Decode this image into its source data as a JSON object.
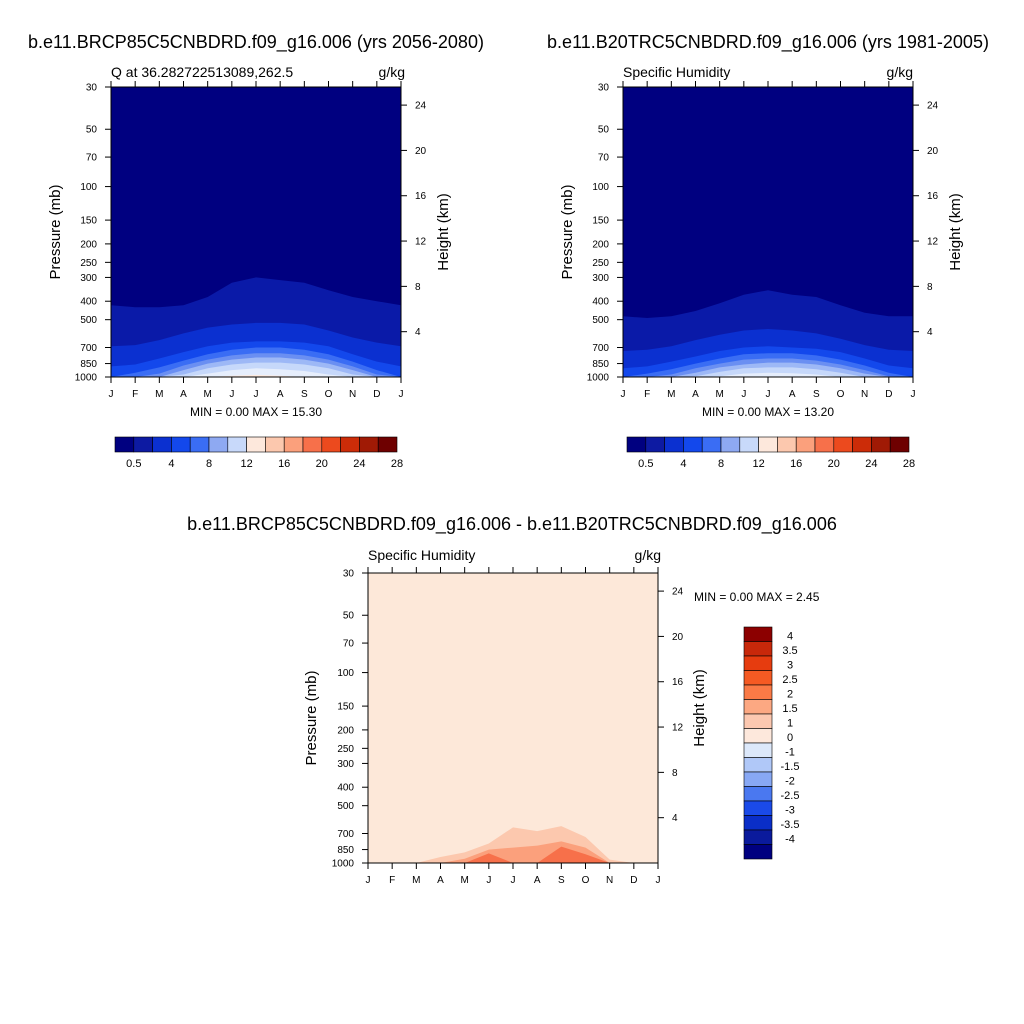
{
  "panels": [
    {
      "title": "b.e11.BRCP85C5CNBDRD.f09_g16.006 (yrs 2056-2080)",
      "left_label": "Q at 36.282722513089,262.5",
      "units": "g/kg",
      "ylabel": "Pressure (mb)",
      "y2label": "Height (km)",
      "minmax": "MIN =   0.00 MAX =  15.30"
    },
    {
      "title": "b.e11.B20TRC5CNBDRD.f09_g16.006 (yrs 1981-2005)",
      "left_label": "Specific Humidity",
      "units": "g/kg",
      "ylabel": "Pressure (mb)",
      "y2label": "Height (km)",
      "minmax": "MIN =   0.00 MAX =  13.20"
    },
    {
      "title": "b.e11.BRCP85C5CNBDRD.f09_g16.006 - b.e11.B20TRC5CNBDRD.f09_g16.006",
      "left_label": "Specific Humidity",
      "units": "g/kg",
      "ylabel": "Pressure (mb)",
      "y2label": "Height (km)",
      "minmax": "MIN =   0.00 MAX =   2.45"
    }
  ],
  "chart_data": [
    {
      "type": "heatmap",
      "x_tick_labels": [
        "J",
        "F",
        "M",
        "A",
        "M",
        "J",
        "J",
        "A",
        "S",
        "O",
        "N",
        "D",
        "J"
      ],
      "y_tick_labels": [
        "30",
        "50",
        "70",
        "100",
        "150",
        "200",
        "250",
        "300",
        "400",
        "500",
        "700",
        "850",
        "1000"
      ],
      "y_tick_values": [
        30,
        50,
        70,
        100,
        150,
        200,
        250,
        300,
        400,
        500,
        700,
        850,
        1000
      ],
      "y2_tick_labels": [
        "24",
        "20",
        "16",
        "12",
        "8",
        "4"
      ],
      "y2_tick_values": [
        24,
        20,
        16,
        12,
        8,
        4
      ],
      "ylim": [
        30,
        1000
      ],
      "y_scale": "log",
      "colorbar_labels": [
        "0.5",
        "4",
        "8",
        "12",
        "16",
        "20",
        "24",
        "28"
      ],
      "colorbar_colors": [
        "#000080",
        "#0d1aa2",
        "#0b30d0",
        "#1348ec",
        "#3a6df4",
        "#8ea9f2",
        "#c8d9fa",
        "#fde8dc",
        "#fcc8ae",
        "#fba07c",
        "#f7704a",
        "#ec4a1e",
        "#cc2c08",
        "#a01a05",
        "#6e0000"
      ],
      "bands": [
        {
          "color": "#000080",
          "top_mb": [
            30,
            30,
            30,
            30,
            30,
            30,
            30,
            30,
            30,
            30,
            30,
            30,
            30
          ]
        },
        {
          "color": "#0a1aa8",
          "top_mb": [
            420,
            430,
            430,
            420,
            380,
            320,
            300,
            310,
            320,
            350,
            380,
            400,
            420
          ]
        },
        {
          "color": "#0b30d0",
          "top_mb": [
            690,
            680,
            640,
            590,
            550,
            530,
            520,
            520,
            530,
            570,
            620,
            660,
            690
          ]
        },
        {
          "color": "#1348ec",
          "top_mb": [
            880,
            860,
            800,
            740,
            690,
            660,
            650,
            650,
            660,
            690,
            760,
            830,
            880
          ]
        },
        {
          "color": "#3a6df4",
          "top_mb": [
            1000,
            950,
            890,
            820,
            760,
            720,
            700,
            700,
            720,
            760,
            830,
            920,
            1000
          ]
        },
        {
          "color": "#6a8ff2",
          "top_mb": [
            1000,
            1000,
            960,
            870,
            810,
            770,
            750,
            750,
            770,
            810,
            880,
            970,
            1000
          ]
        },
        {
          "color": "#9db8f6",
          "top_mb": [
            1000,
            1000,
            1000,
            920,
            850,
            810,
            790,
            790,
            810,
            850,
            920,
            1000,
            1000
          ]
        },
        {
          "color": "#c6d8fa",
          "top_mb": [
            1000,
            1000,
            1000,
            970,
            900,
            860,
            840,
            840,
            860,
            900,
            970,
            1000,
            1000
          ]
        },
        {
          "color": "#e6eefc",
          "top_mb": [
            1000,
            1000,
            1000,
            1000,
            960,
            920,
            900,
            910,
            930,
            970,
            1000,
            1000,
            1000
          ]
        },
        {
          "color": "#fdeadf",
          "top_mb": [
            1000,
            1000,
            1000,
            1000,
            1000,
            985,
            975,
            985,
            1000,
            1000,
            1000,
            1000,
            1000
          ]
        }
      ]
    },
    {
      "type": "heatmap",
      "x_tick_labels": [
        "J",
        "F",
        "M",
        "A",
        "M",
        "J",
        "J",
        "A",
        "S",
        "O",
        "N",
        "D",
        "J"
      ],
      "y_tick_labels": [
        "30",
        "50",
        "70",
        "100",
        "150",
        "200",
        "250",
        "300",
        "400",
        "500",
        "700",
        "850",
        "1000"
      ],
      "y_tick_values": [
        30,
        50,
        70,
        100,
        150,
        200,
        250,
        300,
        400,
        500,
        700,
        850,
        1000
      ],
      "y2_tick_labels": [
        "24",
        "20",
        "16",
        "12",
        "8",
        "4"
      ],
      "y2_tick_values": [
        24,
        20,
        16,
        12,
        8,
        4
      ],
      "ylim": [
        30,
        1000
      ],
      "y_scale": "log",
      "colorbar_labels": [
        "0.5",
        "4",
        "8",
        "12",
        "16",
        "20",
        "24",
        "28"
      ],
      "colorbar_colors": [
        "#000080",
        "#0d1aa2",
        "#0b30d0",
        "#1348ec",
        "#3a6df4",
        "#8ea9f2",
        "#c8d9fa",
        "#fde8dc",
        "#fcc8ae",
        "#fba07c",
        "#f7704a",
        "#ec4a1e",
        "#cc2c08",
        "#a01a05",
        "#6e0000"
      ],
      "bands": [
        {
          "color": "#000080",
          "top_mb": [
            30,
            30,
            30,
            30,
            30,
            30,
            30,
            30,
            30,
            30,
            30,
            30,
            30
          ]
        },
        {
          "color": "#0a1aa8",
          "top_mb": [
            480,
            490,
            480,
            450,
            410,
            370,
            350,
            370,
            380,
            420,
            460,
            480,
            480
          ]
        },
        {
          "color": "#0b30d0",
          "top_mb": [
            730,
            720,
            690,
            640,
            600,
            570,
            560,
            570,
            590,
            630,
            680,
            720,
            730
          ]
        },
        {
          "color": "#1348ec",
          "top_mb": [
            900,
            880,
            830,
            780,
            730,
            700,
            690,
            700,
            710,
            740,
            800,
            870,
            900
          ]
        },
        {
          "color": "#3a6df4",
          "top_mb": [
            1000,
            960,
            910,
            850,
            800,
            760,
            750,
            750,
            770,
            810,
            870,
            950,
            1000
          ]
        },
        {
          "color": "#6a8ff2",
          "top_mb": [
            1000,
            1000,
            970,
            900,
            850,
            810,
            800,
            800,
            820,
            860,
            920,
            990,
            1000
          ]
        },
        {
          "color": "#9db8f6",
          "top_mb": [
            1000,
            1000,
            1000,
            950,
            890,
            860,
            840,
            840,
            860,
            900,
            960,
            1000,
            1000
          ]
        },
        {
          "color": "#c6d8fa",
          "top_mb": [
            1000,
            1000,
            1000,
            990,
            940,
            900,
            890,
            890,
            910,
            950,
            1000,
            1000,
            1000
          ]
        },
        {
          "color": "#e6eefc",
          "top_mb": [
            1000,
            1000,
            1000,
            1000,
            990,
            960,
            950,
            955,
            970,
            1000,
            1000,
            1000,
            1000
          ]
        }
      ]
    },
    {
      "type": "heatmap",
      "x_tick_labels": [
        "J",
        "F",
        "M",
        "A",
        "M",
        "J",
        "J",
        "A",
        "S",
        "O",
        "N",
        "D",
        "J"
      ],
      "y_tick_labels": [
        "30",
        "50",
        "70",
        "100",
        "150",
        "200",
        "250",
        "300",
        "400",
        "500",
        "700",
        "850",
        "1000"
      ],
      "y_tick_values": [
        30,
        50,
        70,
        100,
        150,
        200,
        250,
        300,
        400,
        500,
        700,
        850,
        1000
      ],
      "y2_tick_labels": [
        "24",
        "20",
        "16",
        "12",
        "8",
        "4"
      ],
      "y2_tick_values": [
        24,
        20,
        16,
        12,
        8,
        4
      ],
      "ylim": [
        30,
        1000
      ],
      "y_scale": "log",
      "colorbar_labels": [
        "4",
        "3.5",
        "3",
        "2.5",
        "2",
        "1.5",
        "1",
        "0",
        "-1",
        "-1.5",
        "-2",
        "-2.5",
        "-3",
        "-3.5",
        "-4"
      ],
      "colorbar_colors": [
        "#8c0000",
        "#c8280a",
        "#e63c0f",
        "#f55a23",
        "#fa7a46",
        "#fca882",
        "#fcc8b0",
        "#fde8dc",
        "#dce8fa",
        "#b0c8f8",
        "#88a8f4",
        "#4a78f0",
        "#1a4ae8",
        "#0a2ec8",
        "#0a1a9c",
        "#000080"
      ],
      "bands": [
        {
          "color": "#fde8d9",
          "top_mb": [
            30,
            30,
            30,
            30,
            30,
            30,
            30,
            30,
            30,
            30,
            30,
            30,
            30
          ]
        },
        {
          "color": "#fcc8ae",
          "top_mb": [
            1000,
            1000,
            1000,
            930,
            880,
            790,
            650,
            680,
            640,
            730,
            960,
            1000,
            1000
          ]
        },
        {
          "color": "#fba07c",
          "top_mb": [
            1000,
            1000,
            1000,
            1000,
            950,
            850,
            830,
            810,
            770,
            830,
            1000,
            1000,
            1000
          ]
        },
        {
          "color": "#f7704a",
          "top_mb": [
            1000,
            1000,
            1000,
            1000,
            1000,
            890,
            1000,
            1000,
            820,
            900,
            1000,
            1000,
            1000
          ]
        }
      ]
    }
  ]
}
